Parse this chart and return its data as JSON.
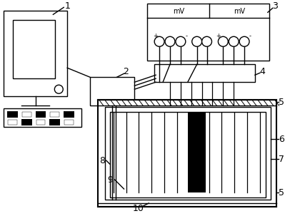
{
  "bg_color": "#ffffff",
  "lc": "#000000",
  "figsize": [
    3.99,
    3.1
  ],
  "dpi": 100
}
